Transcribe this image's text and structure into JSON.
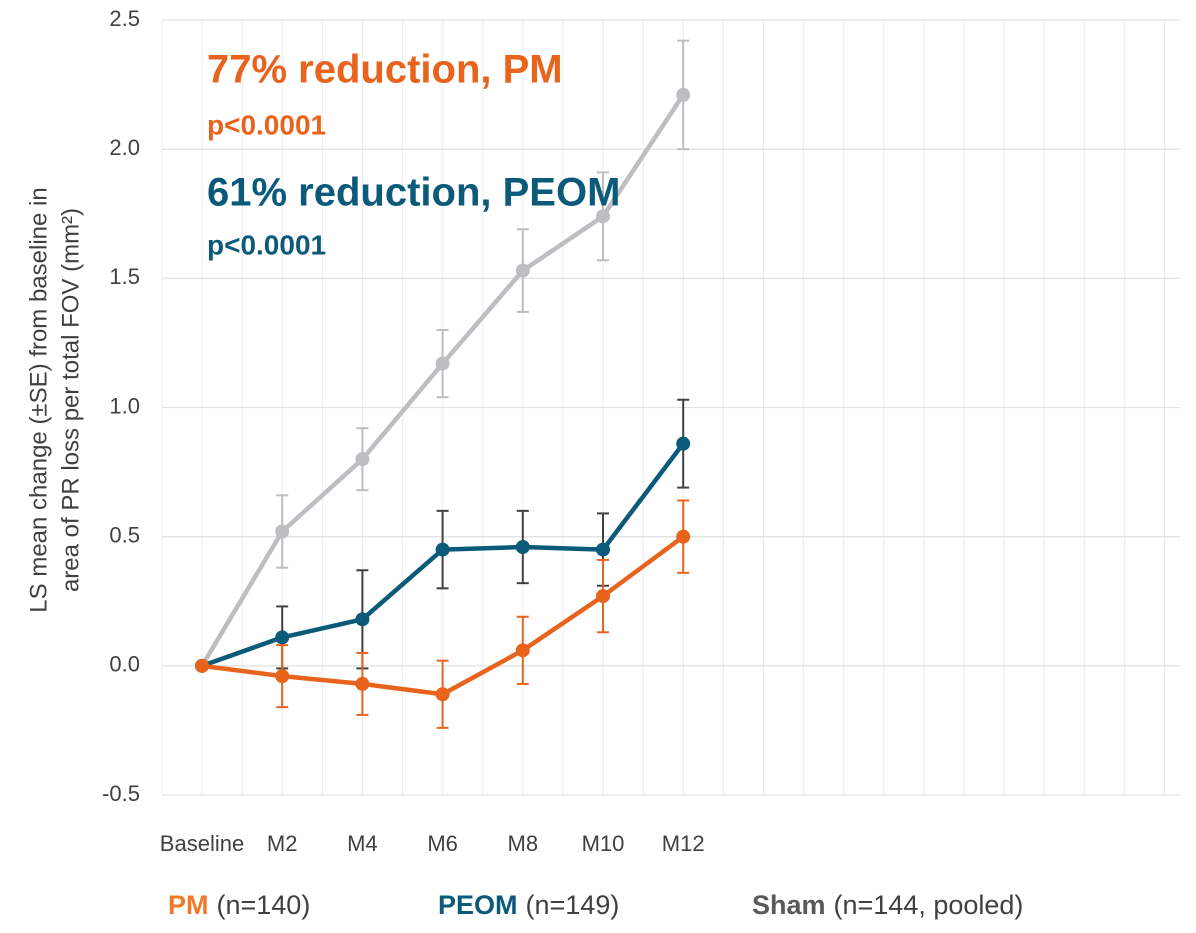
{
  "chart_data": {
    "type": "line",
    "categories": [
      "Baseline",
      "M2",
      "M4",
      "M6",
      "M8",
      "M10",
      "M12"
    ],
    "ylabel": [
      "LS mean change (±SE) from baseline in",
      "area of PR loss per total FOV (mm²)"
    ],
    "ylim": [
      -0.5,
      2.5
    ],
    "yticks": [
      -0.5,
      {
        "value": 0,
        "label": "0.0"
      },
      0.5,
      {
        "value": 1,
        "label": "1.0"
      },
      1.5,
      {
        "value": 2,
        "label": "2.0"
      },
      2.5
    ],
    "grid": true,
    "annotations": [
      {
        "text": "77% reduction, PM",
        "color": "#e8631c"
      },
      {
        "text": "p<0.0001",
        "color": "#e8631c"
      },
      {
        "text": "61% reduction, PEOM",
        "color": "#0b5a7a"
      },
      {
        "text": "p<0.0001",
        "color": "#0b5a7a"
      }
    ],
    "series": [
      {
        "name": "PM",
        "n_label": "(n=140)",
        "color": "#e8631c",
        "label_color": "#f07a2a",
        "values": [
          0,
          -0.04,
          -0.07,
          -0.11,
          0.06,
          0.27,
          0.5
        ],
        "errors": [
          null,
          0.12,
          0.12,
          0.13,
          0.13,
          0.14,
          0.14
        ]
      },
      {
        "name": "PEOM",
        "n_label": "(n=149)",
        "color": "#0b5a7a",
        "label_color": "#0b5a7a",
        "values": [
          0,
          0.11,
          0.18,
          0.45,
          0.46,
          0.45,
          0.86
        ],
        "errors": [
          null,
          0.12,
          0.19,
          0.15,
          0.14,
          0.14,
          0.17
        ]
      },
      {
        "name": "Sham",
        "n_label": "(n=144, pooled)",
        "color": "#bdbdc2",
        "label_color": "#595959",
        "values": [
          0,
          0.52,
          0.8,
          1.17,
          1.53,
          1.74,
          2.21
        ],
        "errors": [
          null,
          0.14,
          0.12,
          0.13,
          0.16,
          0.17,
          0.21
        ]
      }
    ]
  }
}
